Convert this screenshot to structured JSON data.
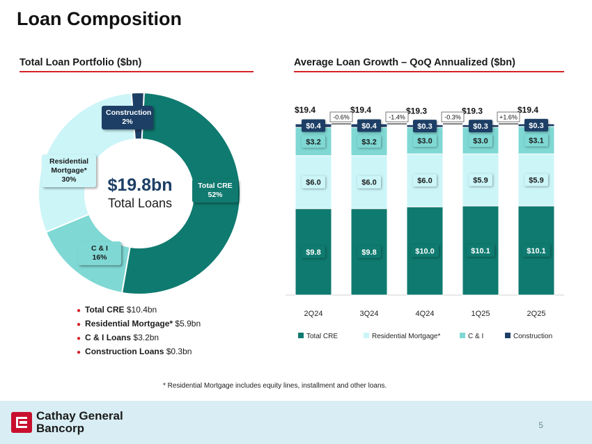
{
  "page_title": "Loan Composition",
  "left": {
    "title": "Total Loan Portfolio ($bn)",
    "center_value": "$19.8bn",
    "center_label": "Total Loans",
    "slices": [
      {
        "label": "Total CRE",
        "pct_label": "52%",
        "value": 52,
        "color": "#0f7a6f"
      },
      {
        "label": "C & I",
        "pct_label": "16%",
        "value": 16,
        "color": "#7fd8d4"
      },
      {
        "label": "Residential Mortgage*",
        "pct_label": "30%",
        "value": 30,
        "color": "#ccf5f8"
      },
      {
        "label": "Construction",
        "pct_label": "2%",
        "value": 2,
        "color": "#1d3f66"
      }
    ],
    "callouts": {
      "construction_l1": "Construction",
      "construction_l2": "2%",
      "residential_l1": "Residential",
      "residential_l2": "Mortgage*",
      "residential_l3": "30%",
      "cre_l1": "Total CRE",
      "cre_l2": "52%",
      "ci_l1": "C & I",
      "ci_l2": "16%"
    },
    "summary": [
      {
        "label": "Total CRE",
        "value": "$10.4bn"
      },
      {
        "label": "Residential Mortgage*",
        "value": "$5.9bn"
      },
      {
        "label": "C & I Loans",
        "value": "$3.2bn"
      },
      {
        "label": "Construction Loans",
        "value": "$0.3bn"
      }
    ]
  },
  "right": {
    "title": "Average Loan Growth – QoQ Annualized ($bn)"
  },
  "chart_data": {
    "type": "bar",
    "stacked": true,
    "categories": [
      "2Q24",
      "3Q24",
      "4Q24",
      "1Q25",
      "2Q25"
    ],
    "series": [
      {
        "name": "Total CRE",
        "values": [
          9.8,
          9.8,
          10.0,
          10.1,
          10.1
        ],
        "labels": [
          "$9.8",
          "$9.8",
          "$10.0",
          "$10.1",
          "$10.1"
        ],
        "color": "#0f7a6f"
      },
      {
        "name": "Residential Mortgage*",
        "values": [
          6.0,
          6.0,
          6.0,
          5.9,
          5.9
        ],
        "labels": [
          "$6.0",
          "$6.0",
          "$6.0",
          "$5.9",
          "$5.9"
        ],
        "color": "#ccf5f8"
      },
      {
        "name": "C & I",
        "values": [
          3.2,
          3.2,
          3.0,
          3.0,
          3.1
        ],
        "labels": [
          "$3.2",
          "$3.2",
          "$3.0",
          "$3.0",
          "$3.1"
        ],
        "color": "#7fd8d4"
      },
      {
        "name": "Construction",
        "values": [
          0.4,
          0.4,
          0.3,
          0.3,
          0.3
        ],
        "labels": [
          "$0.4",
          "$0.4",
          "$0.3",
          "$0.3",
          "$0.3"
        ],
        "color": "#1d3f66"
      }
    ],
    "totals": [
      "$19.4",
      "$19.4",
      "$19.3",
      "$19.3",
      "$19.4"
    ],
    "growth": [
      "-0.6%",
      "-1.4%",
      "-0.3%",
      "+1.6%"
    ],
    "legend_position": "bottom",
    "grid": false
  },
  "footnote": "*  Residential Mortgage includes equity lines, installment and other loans.",
  "footer": {
    "brand_line1": "Cathay General",
    "brand_line2": "Bancorp",
    "page_number": "5"
  }
}
